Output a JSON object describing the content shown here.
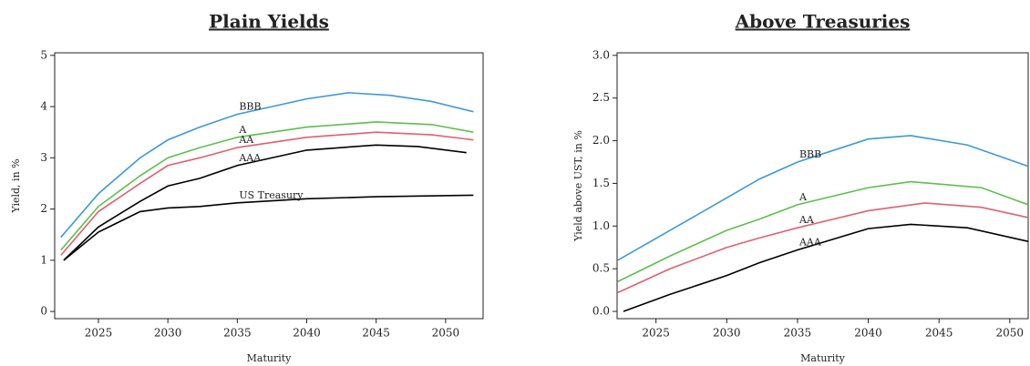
{
  "chart_data": [
    {
      "type": "line",
      "title": "Plain Yields",
      "xlabel": "Maturity",
      "ylabel": "Yield, in %",
      "xlim": [
        2021.85,
        2052.7
      ],
      "xticks": [
        2025,
        2030,
        2035,
        2040,
        2045,
        2050
      ],
      "ylim": [
        -0.14,
        5.05
      ],
      "yticks": [
        0,
        1,
        2,
        3,
        4,
        5
      ],
      "series": [
        {
          "name": "BBB",
          "color": "#3a9ad9",
          "x": [
            2022.3,
            2025,
            2028,
            2030,
            2032.3,
            2035,
            2040,
            2043,
            2046,
            2049,
            2052
          ],
          "values": [
            1.45,
            2.3,
            3.0,
            3.35,
            3.6,
            3.85,
            4.15,
            4.27,
            4.22,
            4.1,
            3.9
          ]
        },
        {
          "name": "A",
          "color": "#5cc04a",
          "x": [
            2022.3,
            2025,
            2028,
            2030,
            2032.3,
            2035,
            2040,
            2045,
            2049,
            2052
          ],
          "values": [
            1.2,
            2.05,
            2.65,
            3.0,
            3.2,
            3.4,
            3.6,
            3.7,
            3.65,
            3.5
          ]
        },
        {
          "name": "AA",
          "color": "#e06070",
          "x": [
            2022.3,
            2025,
            2028,
            2030,
            2032.3,
            2035,
            2040,
            2045,
            2049,
            2052
          ],
          "values": [
            1.1,
            1.95,
            2.5,
            2.85,
            3.0,
            3.2,
            3.4,
            3.5,
            3.45,
            3.35
          ]
        },
        {
          "name": "AAA",
          "color": "#000000",
          "x": [
            2022.5,
            2025,
            2028,
            2030,
            2032.3,
            2035,
            2040,
            2045,
            2048,
            2051.5
          ],
          "values": [
            1.0,
            1.65,
            2.15,
            2.45,
            2.6,
            2.85,
            3.15,
            3.25,
            3.22,
            3.1
          ]
        },
        {
          "name": "US Treasury",
          "color": "#000000",
          "x": [
            2022.5,
            2025,
            2028,
            2030,
            2032.3,
            2035,
            2040,
            2045,
            2052
          ],
          "values": [
            1.0,
            1.55,
            1.95,
            2.02,
            2.05,
            2.12,
            2.2,
            2.24,
            2.27
          ]
        }
      ]
    },
    {
      "type": "line",
      "title": "Above Treasuries",
      "xlabel": "Maturity",
      "ylabel": "Yield above UST, in %",
      "xlim": [
        2022.25,
        2051.3
      ],
      "xticks": [
        2025,
        2030,
        2035,
        2040,
        2045,
        2050
      ],
      "ylim": [
        -0.085,
        3.03
      ],
      "yticks": [
        {
          "value": 0,
          "label": "0.0"
        },
        0.5,
        {
          "value": 1,
          "label": "1.0"
        },
        1.5,
        {
          "value": 2,
          "label": "2.0"
        },
        2.5,
        {
          "value": 3,
          "label": "3.0"
        }
      ],
      "series": [
        {
          "name": "BBB",
          "color": "#3a9ad9",
          "x": [
            2022.3,
            2026,
            2030,
            2032.3,
            2035,
            2040,
            2043,
            2047,
            2051.3
          ],
          "values": [
            0.6,
            0.95,
            1.33,
            1.55,
            1.75,
            2.02,
            2.06,
            1.95,
            1.7
          ]
        },
        {
          "name": "A",
          "color": "#5cc04a",
          "x": [
            2022.3,
            2026,
            2030,
            2032.3,
            2035,
            2040,
            2043,
            2048,
            2051.3
          ],
          "values": [
            0.35,
            0.65,
            0.95,
            1.08,
            1.25,
            1.45,
            1.52,
            1.45,
            1.25
          ]
        },
        {
          "name": "AA",
          "color": "#e06070",
          "x": [
            2022.3,
            2026,
            2030,
            2032.3,
            2035,
            2040,
            2044,
            2048,
            2051.3
          ],
          "values": [
            0.22,
            0.5,
            0.75,
            0.86,
            0.98,
            1.18,
            1.27,
            1.22,
            1.1
          ]
        },
        {
          "name": "AAA",
          "color": "#000000",
          "x": [
            2022.7,
            2026,
            2030,
            2032.3,
            2035,
            2040,
            2043,
            2047,
            2051.3
          ],
          "values": [
            0.0,
            0.2,
            0.42,
            0.57,
            0.72,
            0.97,
            1.02,
            0.98,
            0.82
          ]
        }
      ]
    }
  ]
}
